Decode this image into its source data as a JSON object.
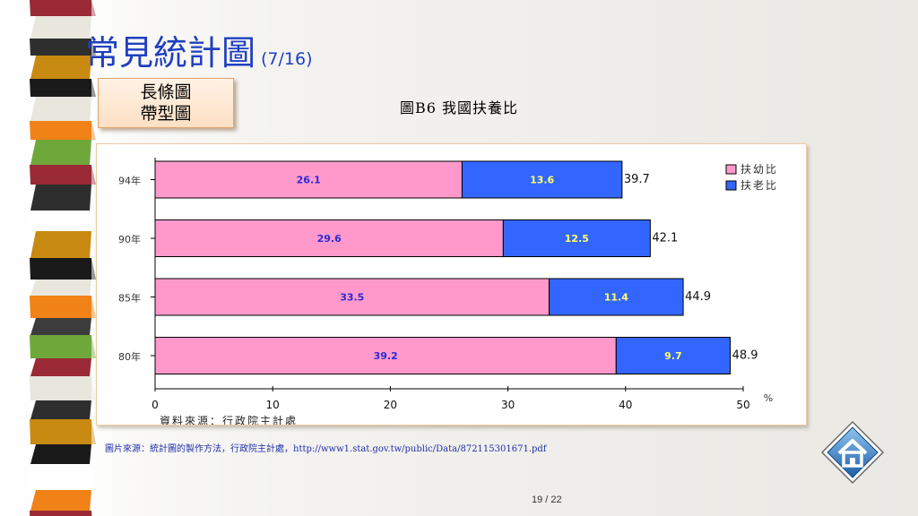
{
  "slide": {
    "title": "常見統計圖",
    "page_indicator": "(7/16)",
    "tag_lines": [
      "長條圖",
      "帶型圖"
    ],
    "chart_heading": "圖B6  我國扶養比",
    "caption": "圖片來源：統計圖的製作方法，行政院主計處，http://www1.stat.gov.tw/public/Data/872115301671.pdf",
    "slide_number": "19 / 22",
    "home_icon": "home-icon"
  },
  "chart_data": {
    "type": "bar",
    "orientation": "horizontal",
    "stacked": true,
    "categories": [
      "94年",
      "90年",
      "85年",
      "80年"
    ],
    "series": [
      {
        "name": "扶幼比",
        "values": [
          26.1,
          29.6,
          33.5,
          39.2
        ],
        "color": "#ff99cc",
        "label_color": "#2a2ad8"
      },
      {
        "name": "扶老比",
        "values": [
          13.6,
          12.5,
          11.4,
          9.7
        ],
        "color": "#3366ff",
        "label_color": "#ffff66"
      }
    ],
    "totals": [
      39.7,
      42.1,
      44.9,
      48.9
    ],
    "xlim": [
      0,
      50
    ],
    "x_ticks": [
      0,
      10,
      20,
      30,
      40,
      50
    ],
    "x_unit": "%",
    "source_note": "資料來源：行政院主計處",
    "legend_position": "top-right",
    "grid": false
  }
}
